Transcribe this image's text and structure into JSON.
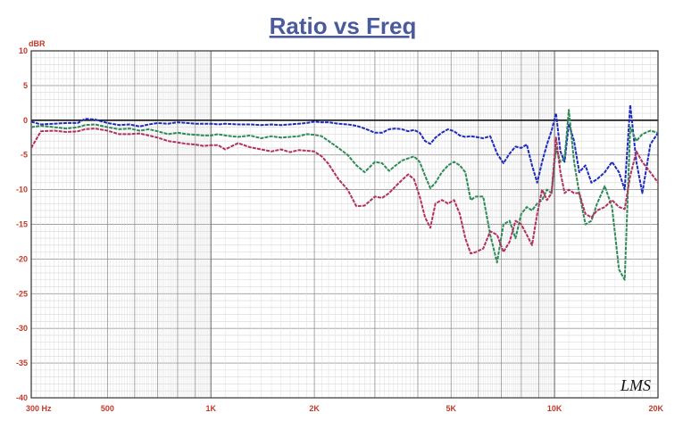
{
  "chart_data": {
    "type": "line",
    "title": "Ratio vs Freq",
    "ylabel": "dBR",
    "xlabel": "",
    "xscale": "log",
    "xlim": [
      300,
      20000
    ],
    "ylim": [
      -40,
      10
    ],
    "grid": true,
    "xticks": [
      {
        "value": 300,
        "label": "300  Hz"
      },
      {
        "value": 500,
        "label": "500"
      },
      {
        "value": 1000,
        "label": "1K"
      },
      {
        "value": 2000,
        "label": "2K"
      },
      {
        "value": 5000,
        "label": "5K"
      },
      {
        "value": 10000,
        "label": "10K"
      },
      {
        "value": 20000,
        "label": "20K"
      }
    ],
    "yticks": [
      {
        "value": 10,
        "label": "10"
      },
      {
        "value": 5,
        "label": "5"
      },
      {
        "value": 0,
        "label": "0"
      },
      {
        "value": -5,
        "label": "-5"
      },
      {
        "value": -10,
        "label": "-10"
      },
      {
        "value": -15,
        "label": "-15"
      },
      {
        "value": -20,
        "label": "-20"
      },
      {
        "value": -25,
        "label": "-25"
      },
      {
        "value": -30,
        "label": "-30"
      },
      {
        "value": -35,
        "label": "-35"
      },
      {
        "value": -40,
        "label": "-40"
      }
    ],
    "logo": "LMS",
    "series": [
      {
        "color": "#1f2bb8",
        "points": [
          [
            300,
            -0.2
          ],
          [
            320,
            -0.6
          ],
          [
            350,
            -0.5
          ],
          [
            380,
            -0.4
          ],
          [
            410,
            -0.4
          ],
          [
            430,
            0.2
          ],
          [
            460,
            0.1
          ],
          [
            500,
            -0.4
          ],
          [
            540,
            -0.7
          ],
          [
            580,
            -0.6
          ],
          [
            620,
            -0.9
          ],
          [
            660,
            -0.6
          ],
          [
            700,
            -0.4
          ],
          [
            750,
            -0.5
          ],
          [
            800,
            -0.3
          ],
          [
            850,
            -0.4
          ],
          [
            900,
            -0.5
          ],
          [
            950,
            -0.5
          ],
          [
            1000,
            -0.5
          ],
          [
            1050,
            -0.6
          ],
          [
            1100,
            -0.5
          ],
          [
            1200,
            -0.6
          ],
          [
            1300,
            -0.6
          ],
          [
            1400,
            -0.7
          ],
          [
            1500,
            -0.6
          ],
          [
            1600,
            -0.7
          ],
          [
            1700,
            -0.6
          ],
          [
            1800,
            -0.5
          ],
          [
            1900,
            -0.4
          ],
          [
            2000,
            -0.2
          ],
          [
            2100,
            -0.3
          ],
          [
            2200,
            -0.3
          ],
          [
            2350,
            -0.5
          ],
          [
            2500,
            -0.6
          ],
          [
            2650,
            -0.8
          ],
          [
            2800,
            -1.2
          ],
          [
            3000,
            -1.8
          ],
          [
            3150,
            -1.8
          ],
          [
            3300,
            -1.3
          ],
          [
            3450,
            -1.2
          ],
          [
            3600,
            -1.3
          ],
          [
            3750,
            -1.6
          ],
          [
            3900,
            -1.4
          ],
          [
            4050,
            -1.8
          ],
          [
            4200,
            -3.0
          ],
          [
            4350,
            -3.4
          ],
          [
            4500,
            -2.5
          ],
          [
            4700,
            -1.8
          ],
          [
            4900,
            -1.3
          ],
          [
            5100,
            -1.6
          ],
          [
            5300,
            -2.2
          ],
          [
            5500,
            -2.4
          ],
          [
            5700,
            -2.3
          ],
          [
            5900,
            -2.4
          ],
          [
            6200,
            -2.6
          ],
          [
            6500,
            -2.3
          ],
          [
            6800,
            -4.8
          ],
          [
            7100,
            -6.2
          ],
          [
            7400,
            -4.8
          ],
          [
            7700,
            -3.8
          ],
          [
            8000,
            -4.0
          ],
          [
            8300,
            -3.5
          ],
          [
            8600,
            -6.5
          ],
          [
            8900,
            -9.0
          ],
          [
            9200,
            -6.0
          ],
          [
            9500,
            -3.5
          ],
          [
            9800,
            -1.5
          ],
          [
            10100,
            1.0
          ],
          [
            10400,
            -4.5
          ],
          [
            10700,
            -6.0
          ],
          [
            11000,
            -0.5
          ],
          [
            11400,
            -3.0
          ],
          [
            11800,
            -7.5
          ],
          [
            12300,
            -6.5
          ],
          [
            12800,
            -9.0
          ],
          [
            13300,
            -8.5
          ],
          [
            14000,
            -7.5
          ],
          [
            14700,
            -6.0
          ],
          [
            15400,
            -7.5
          ],
          [
            16000,
            -10.0
          ],
          [
            16600,
            2.2
          ],
          [
            17300,
            -6.0
          ],
          [
            18000,
            -10.5
          ],
          [
            19000,
            -3.5
          ],
          [
            20000,
            -1.8
          ]
        ]
      },
      {
        "color": "#2e8b57",
        "points": [
          [
            300,
            -1.0
          ],
          [
            320,
            -0.8
          ],
          [
            350,
            -1.0
          ],
          [
            380,
            -1.2
          ],
          [
            410,
            -1.0
          ],
          [
            430,
            -0.7
          ],
          [
            460,
            -0.6
          ],
          [
            500,
            -1.0
          ],
          [
            540,
            -1.3
          ],
          [
            580,
            -1.2
          ],
          [
            620,
            -1.5
          ],
          [
            660,
            -1.3
          ],
          [
            700,
            -1.6
          ],
          [
            750,
            -2.0
          ],
          [
            800,
            -1.8
          ],
          [
            850,
            -2.0
          ],
          [
            900,
            -2.1
          ],
          [
            950,
            -2.2
          ],
          [
            1000,
            -2.2
          ],
          [
            1050,
            -2.0
          ],
          [
            1100,
            -2.2
          ],
          [
            1200,
            -2.4
          ],
          [
            1300,
            -2.2
          ],
          [
            1400,
            -2.6
          ],
          [
            1500,
            -2.3
          ],
          [
            1600,
            -2.5
          ],
          [
            1700,
            -2.4
          ],
          [
            1800,
            -2.3
          ],
          [
            1900,
            -2.0
          ],
          [
            2000,
            -2.1
          ],
          [
            2100,
            -2.3
          ],
          [
            2200,
            -3.0
          ],
          [
            2350,
            -4.0
          ],
          [
            2500,
            -5.0
          ],
          [
            2650,
            -6.5
          ],
          [
            2800,
            -7.5
          ],
          [
            3000,
            -6.0
          ],
          [
            3150,
            -6.2
          ],
          [
            3300,
            -7.3
          ],
          [
            3450,
            -6.5
          ],
          [
            3600,
            -5.8
          ],
          [
            3750,
            -5.5
          ],
          [
            3900,
            -5.2
          ],
          [
            4050,
            -6.0
          ],
          [
            4200,
            -8.0
          ],
          [
            4350,
            -9.8
          ],
          [
            4500,
            -9.0
          ],
          [
            4700,
            -7.5
          ],
          [
            4900,
            -6.5
          ],
          [
            5100,
            -6.0
          ],
          [
            5300,
            -6.5
          ],
          [
            5500,
            -7.5
          ],
          [
            5700,
            -11.5
          ],
          [
            5900,
            -11.0
          ],
          [
            6200,
            -11.0
          ],
          [
            6500,
            -16.5
          ],
          [
            6800,
            -20.5
          ],
          [
            7100,
            -15.0
          ],
          [
            7400,
            -14.5
          ],
          [
            7700,
            -17.0
          ],
          [
            8000,
            -13.5
          ],
          [
            8300,
            -12.5
          ],
          [
            8600,
            -13.0
          ],
          [
            8900,
            -12.0
          ],
          [
            9200,
            -11.5
          ],
          [
            9500,
            -10.0
          ],
          [
            9800,
            -10.5
          ],
          [
            10100,
            -4.0
          ],
          [
            10400,
            -6.0
          ],
          [
            10700,
            -5.5
          ],
          [
            11000,
            1.5
          ],
          [
            11400,
            -6.0
          ],
          [
            11800,
            -10.5
          ],
          [
            12300,
            -15.0
          ],
          [
            12800,
            -14.5
          ],
          [
            13300,
            -12.0
          ],
          [
            14000,
            -9.5
          ],
          [
            14700,
            -12.5
          ],
          [
            15400,
            -21.5
          ],
          [
            16000,
            -23.0
          ],
          [
            16600,
            -1.0
          ],
          [
            17300,
            -3.0
          ],
          [
            18000,
            -2.0
          ],
          [
            19000,
            -1.5
          ],
          [
            20000,
            -1.8
          ]
        ]
      },
      {
        "color": "#b03060",
        "points": [
          [
            300,
            -4.0
          ],
          [
            320,
            -1.6
          ],
          [
            350,
            -1.5
          ],
          [
            380,
            -1.7
          ],
          [
            410,
            -1.6
          ],
          [
            430,
            -1.3
          ],
          [
            460,
            -1.2
          ],
          [
            500,
            -1.5
          ],
          [
            540,
            -2.0
          ],
          [
            580,
            -2.0
          ],
          [
            620,
            -1.9
          ],
          [
            660,
            -2.2
          ],
          [
            700,
            -2.5
          ],
          [
            750,
            -3.0
          ],
          [
            800,
            -3.2
          ],
          [
            850,
            -3.4
          ],
          [
            900,
            -3.5
          ],
          [
            950,
            -3.7
          ],
          [
            1000,
            -3.6
          ],
          [
            1050,
            -3.6
          ],
          [
            1100,
            -4.2
          ],
          [
            1200,
            -3.3
          ],
          [
            1300,
            -3.9
          ],
          [
            1400,
            -4.2
          ],
          [
            1500,
            -4.5
          ],
          [
            1600,
            -4.2
          ],
          [
            1700,
            -4.6
          ],
          [
            1800,
            -4.3
          ],
          [
            1900,
            -4.4
          ],
          [
            2000,
            -4.5
          ],
          [
            2100,
            -5.2
          ],
          [
            2200,
            -6.3
          ],
          [
            2350,
            -8.5
          ],
          [
            2500,
            -10.0
          ],
          [
            2650,
            -12.4
          ],
          [
            2800,
            -12.3
          ],
          [
            3000,
            -11.0
          ],
          [
            3150,
            -11.2
          ],
          [
            3300,
            -10.5
          ],
          [
            3450,
            -9.5
          ],
          [
            3600,
            -8.6
          ],
          [
            3750,
            -7.8
          ],
          [
            3900,
            -8.5
          ],
          [
            4050,
            -11.0
          ],
          [
            4200,
            -14.0
          ],
          [
            4350,
            -15.5
          ],
          [
            4500,
            -12.0
          ],
          [
            4700,
            -11.5
          ],
          [
            4900,
            -12.0
          ],
          [
            5100,
            -11.5
          ],
          [
            5300,
            -13.5
          ],
          [
            5500,
            -17.0
          ],
          [
            5700,
            -19.2
          ],
          [
            5900,
            -19.0
          ],
          [
            6200,
            -18.5
          ],
          [
            6500,
            -16.0
          ],
          [
            6800,
            -16.5
          ],
          [
            7100,
            -19.0
          ],
          [
            7400,
            -17.5
          ],
          [
            7700,
            -14.5
          ],
          [
            8000,
            -15.0
          ],
          [
            8300,
            -16.5
          ],
          [
            8600,
            -18.0
          ],
          [
            8900,
            -13.5
          ],
          [
            9200,
            -10.0
          ],
          [
            9500,
            -11.5
          ],
          [
            9800,
            -10.5
          ],
          [
            10100,
            -2.5
          ],
          [
            10400,
            -7.5
          ],
          [
            10700,
            -10.5
          ],
          [
            11000,
            -10.0
          ],
          [
            11400,
            -10.5
          ],
          [
            11800,
            -10.5
          ],
          [
            12300,
            -13.5
          ],
          [
            12800,
            -14.0
          ],
          [
            13300,
            -13.0
          ],
          [
            14000,
            -12.5
          ],
          [
            14700,
            -11.5
          ],
          [
            15400,
            -12.5
          ],
          [
            16000,
            -12.8
          ],
          [
            16600,
            -8.0
          ],
          [
            17300,
            -4.5
          ],
          [
            18000,
            -6.0
          ],
          [
            19000,
            -7.5
          ],
          [
            20000,
            -9.0
          ]
        ]
      }
    ]
  }
}
